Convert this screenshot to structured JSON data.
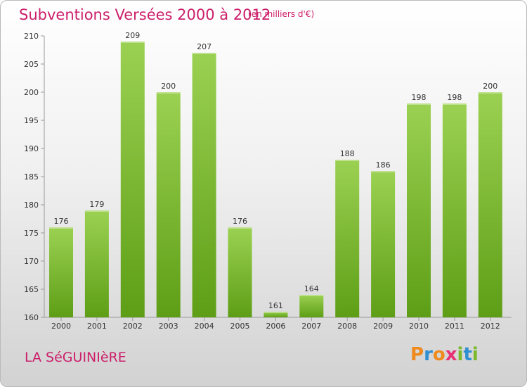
{
  "header": {
    "title": "Subventions Versées 2000 à 2012",
    "unit_note": "(en milliers d'€)"
  },
  "footer": {
    "commune": "LA SéGUINIèRE",
    "brand_letters": [
      "P",
      "r",
      "o",
      "x",
      "i",
      "t",
      "i"
    ]
  },
  "colors": {
    "accent": "#cc1f6a",
    "bar_top": "#9bd152",
    "bar_bottom": "#5e9e16",
    "brand": [
      "#f08a1c",
      "#2f8fd0",
      "#f08a1c",
      "#e82f76",
      "#79b92a",
      "#2f8fd0",
      "#79b92a"
    ]
  },
  "chart_data": {
    "type": "bar",
    "categories": [
      "2000",
      "2001",
      "2002",
      "2003",
      "2004",
      "2005",
      "2006",
      "2007",
      "2008",
      "2009",
      "2010",
      "2011",
      "2012"
    ],
    "values": [
      176,
      179,
      209,
      200,
      207,
      176,
      161,
      164,
      188,
      186,
      198,
      198,
      200
    ],
    "y_ticks": [
      160,
      165,
      170,
      175,
      180,
      185,
      190,
      195,
      200,
      205,
      210
    ],
    "ylim": [
      160,
      210
    ],
    "title": "Subventions Versées 2000 à 2012",
    "ylabel": "(en milliers d'€)",
    "xlabel": "",
    "grid": false,
    "legend": "none"
  }
}
